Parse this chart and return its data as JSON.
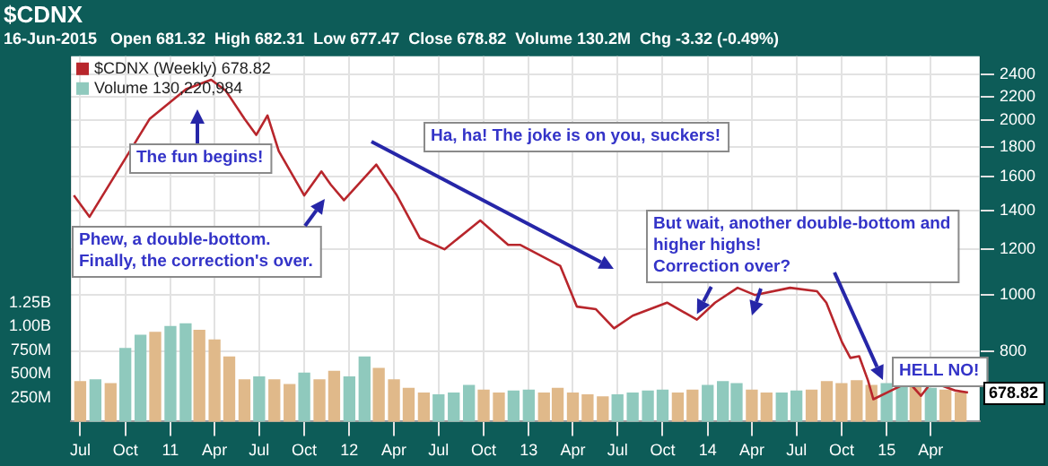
{
  "chart_data": {
    "type": "line",
    "title": "$CDNX",
    "subtitle": "16-Jun-2015   Open 681.32  High 682.31  Low 677.47  Close 678.82  Volume 130.2M  Chg -3.32 (-0.49%)",
    "series": [
      {
        "name": "$CDNX (Weekly) 678.82",
        "color": "#b8262c",
        "x": [
          "2010-06-18",
          "2010-07-20",
          "2010-11-20",
          "2011-02-02",
          "2011-03-25",
          "2011-04-24",
          "2011-06-01",
          "2011-06-25",
          "2011-07-18",
          "2011-08-10",
          "2011-10-01",
          "2011-11-05",
          "2011-11-24",
          "2011-12-21",
          "2012-02-25",
          "2012-04-07",
          "2012-05-24",
          "2012-07-13",
          "2012-09-24",
          "2012-11-20",
          "2012-12-15",
          "2013-03-06",
          "2013-04-09",
          "2013-05-18",
          "2013-06-24",
          "2013-08-01",
          "2013-10-10",
          "2013-12-10",
          "2014-01-16",
          "2014-03-03",
          "2014-04-07",
          "2014-06-18",
          "2014-08-12",
          "2014-08-31",
          "2014-10-02",
          "2014-10-19",
          "2014-11-06",
          "2014-11-24",
          "2014-12-05",
          "2015-01-10",
          "2015-02-15",
          "2015-03-12",
          "2015-04-03",
          "2015-05-22",
          "2015-06-16"
        ],
        "values": [
          1485,
          1364,
          2014,
          2264,
          2350,
          2250,
          2014,
          1888,
          2040,
          1770,
          1485,
          1633,
          1550,
          1457,
          1678,
          1485,
          1253,
          1199,
          1344,
          1220,
          1220,
          1123,
          955,
          945,
          876,
          921,
          970,
          907,
          970,
          1029,
          1000,
          1029,
          1015,
          970,
          829,
          779,
          784,
          712,
          661,
          684,
          708,
          670,
          708,
          684,
          678.82
        ]
      },
      {
        "name": "Volume 130,220,984",
        "type": "bar",
        "axis": "y2",
        "color": "#8fc9bd",
        "x": [
          "2010-07",
          "2010-08",
          "2010-09",
          "2010-10",
          "2010-11",
          "2010-12",
          "2011-01",
          "2011-02",
          "2011-03",
          "2011-04",
          "2011-05",
          "2011-06",
          "2011-07",
          "2011-08",
          "2011-09",
          "2011-10",
          "2011-11",
          "2011-12",
          "2012-01",
          "2012-02",
          "2012-03",
          "2012-04",
          "2012-05",
          "2012-06",
          "2012-07",
          "2012-08",
          "2012-09",
          "2012-10",
          "2012-11",
          "2012-12",
          "2013-01",
          "2013-02",
          "2013-03",
          "2013-04",
          "2013-05",
          "2013-06",
          "2013-07",
          "2013-08",
          "2013-09",
          "2013-10",
          "2013-11",
          "2013-12",
          "2014-01",
          "2014-02",
          "2014-03",
          "2014-04",
          "2014-05",
          "2014-06",
          "2014-07",
          "2014-08",
          "2014-09",
          "2014-10",
          "2014-11",
          "2014-12",
          "2015-01",
          "2015-02",
          "2015-03",
          "2015-04",
          "2015-05",
          "2015-06"
        ],
        "values": [
          420000000,
          440000000,
          400000000,
          770000000,
          910000000,
          940000000,
          1000000000,
          1030000000,
          960000000,
          860000000,
          680000000,
          440000000,
          470000000,
          440000000,
          390000000,
          510000000,
          440000000,
          530000000,
          470000000,
          680000000,
          560000000,
          440000000,
          350000000,
          300000000,
          280000000,
          300000000,
          380000000,
          330000000,
          300000000,
          320000000,
          330000000,
          300000000,
          350000000,
          300000000,
          280000000,
          260000000,
          280000000,
          300000000,
          320000000,
          330000000,
          300000000,
          330000000,
          380000000,
          420000000,
          400000000,
          330000000,
          300000000,
          300000000,
          320000000,
          330000000,
          420000000,
          400000000,
          430000000,
          380000000,
          400000000,
          380000000,
          380000000,
          350000000,
          330000000,
          300000000
        ],
        "colors": [
          "#e0b98a",
          "#8fc9bd",
          "#e0b98a",
          "#8fc9bd",
          "#8fc9bd",
          "#e0b98a",
          "#8fc9bd",
          "#8fc9bd",
          "#e0b98a",
          "#e0b98a",
          "#e0b98a",
          "#e0b98a",
          "#8fc9bd",
          "#e0b98a",
          "#e0b98a",
          "#8fc9bd",
          "#e0b98a",
          "#e0b98a",
          "#8fc9bd",
          "#8fc9bd",
          "#e0b98a",
          "#e0b98a",
          "#e0b98a",
          "#e0b98a",
          "#8fc9bd",
          "#8fc9bd",
          "#8fc9bd",
          "#e0b98a",
          "#e0b98a",
          "#8fc9bd",
          "#8fc9bd",
          "#e0b98a",
          "#e0b98a",
          "#e0b98a",
          "#e0b98a",
          "#e0b98a",
          "#8fc9bd",
          "#8fc9bd",
          "#8fc9bd",
          "#8fc9bd",
          "#e0b98a",
          "#e0b98a",
          "#8fc9bd",
          "#8fc9bd",
          "#8fc9bd",
          "#e0b98a",
          "#e0b98a",
          "#8fc9bd",
          "#8fc9bd",
          "#e0b98a",
          "#e0b98a",
          "#e0b98a",
          "#e0b98a",
          "#e0b98a",
          "#8fc9bd",
          "#8fc9bd",
          "#e0b98a",
          "#8fc9bd",
          "#e0b98a",
          "#e0b98a"
        ]
      }
    ],
    "xlim": [
      "2010-06-12",
      "2015-07-10"
    ],
    "xticks": [
      {
        "value": "2010-07-01",
        "label": "Jul"
      },
      {
        "value": "2010-10-01",
        "label": "Oct"
      },
      {
        "value": "2011-01-01",
        "label": "11"
      },
      {
        "value": "2011-04-01",
        "label": "Apr"
      },
      {
        "value": "2011-07-01",
        "label": "Jul"
      },
      {
        "value": "2011-10-01",
        "label": "Oct"
      },
      {
        "value": "2012-01-01",
        "label": "12"
      },
      {
        "value": "2012-04-01",
        "label": "Apr"
      },
      {
        "value": "2012-07-01",
        "label": "Jul"
      },
      {
        "value": "2012-10-01",
        "label": "Oct"
      },
      {
        "value": "2013-01-01",
        "label": "13"
      },
      {
        "value": "2013-04-01",
        "label": "Apr"
      },
      {
        "value": "2013-07-01",
        "label": "Jul"
      },
      {
        "value": "2013-10-01",
        "label": "Oct"
      },
      {
        "value": "2014-01-01",
        "label": "14"
      },
      {
        "value": "2014-04-01",
        "label": "Apr"
      },
      {
        "value": "2014-07-01",
        "label": "Jul"
      },
      {
        "value": "2014-10-01",
        "label": "Oct"
      },
      {
        "value": "2015-01-01",
        "label": "15"
      },
      {
        "value": "2015-04-01",
        "label": "Apr"
      }
    ],
    "log": true,
    "ylim": [
      605,
      2580
    ],
    "yticks": [
      800,
      1000,
      1200,
      1400,
      1600,
      1800,
      2000,
      2200,
      2400
    ],
    "y2lim": [
      0,
      3850000000
    ],
    "y2ticks": [
      {
        "value": 250000000,
        "label": "250M"
      },
      {
        "value": 500000000,
        "label": "500M"
      },
      {
        "value": 750000000,
        "label": "750M"
      },
      {
        "value": 1000000000,
        "label": "1.00B"
      },
      {
        "value": 1250000000,
        "label": "1.25B"
      }
    ],
    "grid": true,
    "legend": "top left",
    "annotations": [
      "The fun begins!",
      "Phew, a double-bottom.\nFinally, the correction's over.",
      "Ha, ha! The joke is on you, suckers!",
      {
        "text": "But wait, another double-bottom and higher highs!\nCorrection over?",
        "x": "2013-12-10",
        "y": 907
      },
      "HELL NO!",
      "678.82"
    ]
  }
}
